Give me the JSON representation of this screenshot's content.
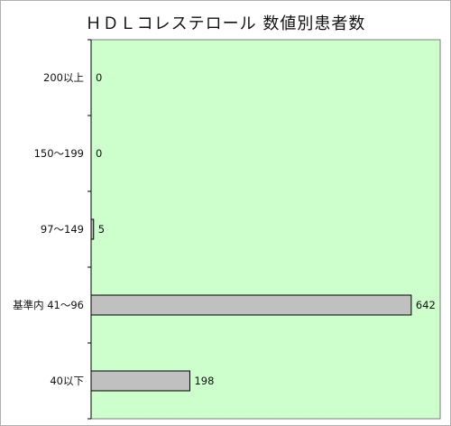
{
  "chart_data": {
    "type": "bar",
    "orientation": "horizontal",
    "title": "ＨＤＬコレステロール 数値別患者数",
    "categories": [
      "200以上",
      "150～199",
      "97～149",
      "基準内 41～96",
      "40以下"
    ],
    "values": [
      0,
      0,
      5,
      642,
      198
    ],
    "xlim": [
      0,
      700
    ],
    "grid": false,
    "legend": "none",
    "data_labels": true,
    "colors": {
      "plot_background": "#ccffcc",
      "bar_fill": "#c0c0c0",
      "bar_stroke": "#000000"
    }
  }
}
